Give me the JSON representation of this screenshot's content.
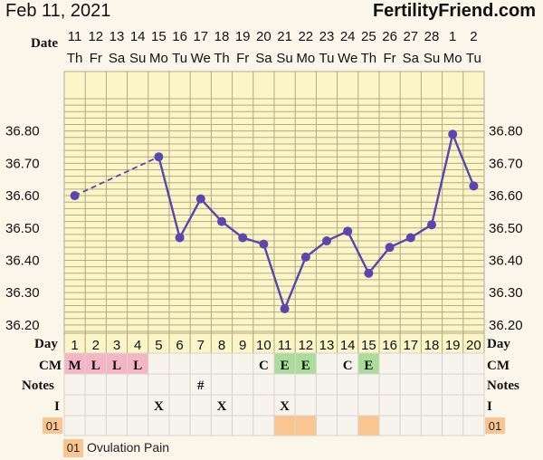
{
  "header": {
    "date": "Feb 11, 2021",
    "site": "FertilityFriend.com"
  },
  "colors": {
    "background": "#fbf6ea",
    "chart_fill": "#fbf5c7",
    "grid": "#b4aa86",
    "line": "#5a46ad",
    "cm_menstrual": "#f4b6c5",
    "cm_egg_white": "#a9dd99",
    "ovulation_pain": "#fbc592"
  },
  "row_labels": {
    "date": "Date",
    "day": "Day",
    "cm": "CM",
    "notes": "Notes",
    "intercourse": "I"
  },
  "legend": {
    "code": "01",
    "label": "Ovulation Pain"
  },
  "chart_data": {
    "type": "line",
    "title": "",
    "xlabel": "",
    "ylabel": "",
    "ylim": [
      36.1,
      36.9
    ],
    "y_ticks": [
      "36.20",
      "36.30",
      "36.40",
      "36.50",
      "36.60",
      "36.70",
      "36.80"
    ],
    "grid": true,
    "x": [
      {
        "date": "11",
        "weekday": "Th",
        "day": "1"
      },
      {
        "date": "12",
        "weekday": "Fr",
        "day": "2"
      },
      {
        "date": "13",
        "weekday": "Sa",
        "day": "3"
      },
      {
        "date": "14",
        "weekday": "Su",
        "day": "4"
      },
      {
        "date": "15",
        "weekday": "Mo",
        "day": "5"
      },
      {
        "date": "16",
        "weekday": "Tu",
        "day": "6"
      },
      {
        "date": "17",
        "weekday": "We",
        "day": "7"
      },
      {
        "date": "18",
        "weekday": "Th",
        "day": "8"
      },
      {
        "date": "19",
        "weekday": "Fr",
        "day": "9"
      },
      {
        "date": "20",
        "weekday": "Sa",
        "day": "10"
      },
      {
        "date": "21",
        "weekday": "Su",
        "day": "11"
      },
      {
        "date": "22",
        "weekday": "Mo",
        "day": "12"
      },
      {
        "date": "23",
        "weekday": "Tu",
        "day": "13"
      },
      {
        "date": "24",
        "weekday": "We",
        "day": "14"
      },
      {
        "date": "25",
        "weekday": "Th",
        "day": "15"
      },
      {
        "date": "26",
        "weekday": "Fr",
        "day": "16"
      },
      {
        "date": "27",
        "weekday": "Sa",
        "day": "17"
      },
      {
        "date": "28",
        "weekday": "Su",
        "day": "18"
      },
      {
        "date": "1",
        "weekday": "Mo",
        "day": "19"
      },
      {
        "date": "2",
        "weekday": "Tu",
        "day": "20"
      }
    ],
    "temperatures": [
      36.6,
      null,
      null,
      null,
      36.72,
      36.47,
      36.59,
      36.52,
      36.47,
      36.45,
      36.25,
      36.41,
      36.46,
      36.49,
      36.36,
      36.44,
      36.47,
      36.51,
      36.79,
      36.63
    ],
    "cm": [
      "M",
      "L",
      "L",
      "L",
      "",
      "",
      "",
      "",
      "",
      "C",
      "E",
      "E",
      "",
      "C",
      "E",
      "",
      "",
      "",
      "",
      ""
    ],
    "notes": [
      "",
      "",
      "",
      "",
      "",
      "",
      "#",
      "",
      "",
      "",
      "",
      "",
      "",
      "",
      "",
      "",
      "",
      "",
      "",
      ""
    ],
    "intercourse": [
      "",
      "",
      "",
      "",
      "X",
      "",
      "",
      "X",
      "",
      "",
      "X",
      "",
      "",
      "",
      "",
      "",
      "",
      "",
      "",
      ""
    ],
    "ovulation_pain": [
      false,
      false,
      false,
      false,
      false,
      false,
      false,
      false,
      false,
      false,
      true,
      true,
      false,
      false,
      true,
      false,
      false,
      false,
      false,
      false
    ]
  }
}
